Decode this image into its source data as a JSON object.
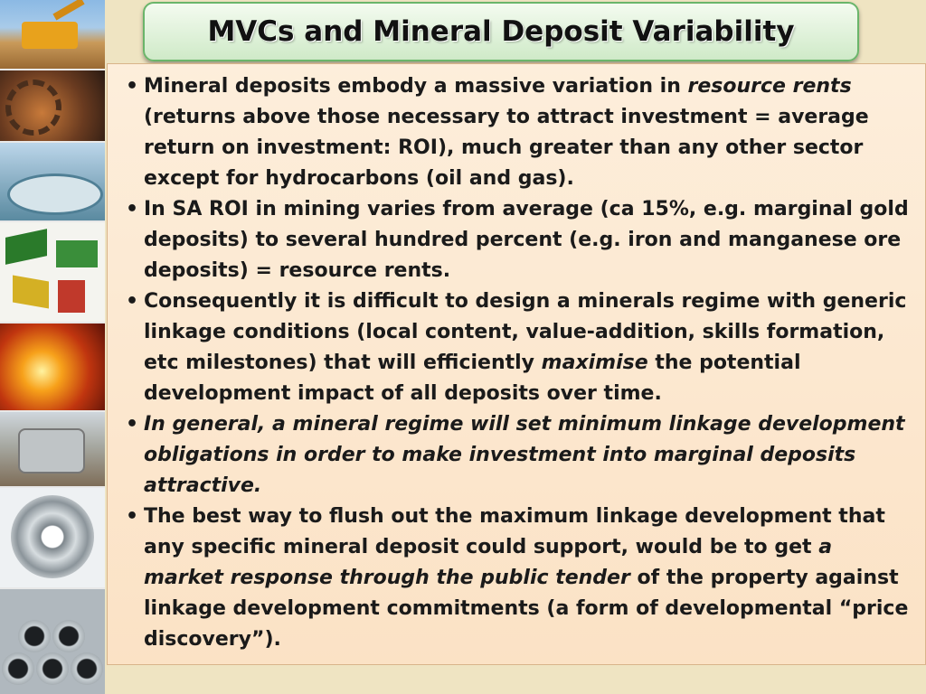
{
  "slide": {
    "title": "MVCs and Mineral Deposit Variability"
  },
  "images": [
    "mining-truck-photo",
    "bucket-wheel-excavator-photo",
    "thickener-tank-photo",
    "mineral-processing-equipment-photo",
    "molten-metal-pour-photo",
    "grinding-mill-photo",
    "steel-coil-photo",
    "steel-pipes-photo"
  ],
  "bullets": [
    {
      "parts": [
        {
          "text": "Mineral deposits embody a massive variation in ",
          "style": "normal"
        },
        {
          "text": "resource rents",
          "style": "italic"
        },
        {
          "text": " (returns above those necessary to attract investment = average return on investment: ROI), much greater than any other sector except for hydrocarbons (oil and gas).",
          "style": "normal"
        }
      ]
    },
    {
      "parts": [
        {
          "text": "In SA ROI in mining varies from average (ca 15%, e.g. marginal gold deposits) to several hundred percent (e.g. iron and manganese ore deposits) =  resource rents.",
          "style": "normal"
        }
      ]
    },
    {
      "parts": [
        {
          "text": "Consequently it is difficult to design a minerals regime with generic linkage conditions (local content, value-addition, skills formation, etc milestones) that will efficiently ",
          "style": "normal"
        },
        {
          "text": "maximise",
          "style": "italic"
        },
        {
          "text": " the potential development impact of all deposits over time.",
          "style": "normal"
        }
      ]
    },
    {
      "parts": [
        {
          "text": "In general, a mineral regime will set minimum linkage development obligations in order to make investment into marginal deposits attractive.",
          "style": "bold-italic"
        }
      ]
    },
    {
      "parts": [
        {
          "text": "The best way to flush out the maximum linkage development that any specific mineral deposit could support, would be to get ",
          "style": "normal"
        },
        {
          "text": "a ",
          "style": "italic"
        },
        {
          "text": "market response through the public tender",
          "style": "bold-italic"
        },
        {
          "text": " of the property against linkage development commitments (a form of developmental “price discovery”).",
          "style": "normal"
        }
      ]
    }
  ]
}
